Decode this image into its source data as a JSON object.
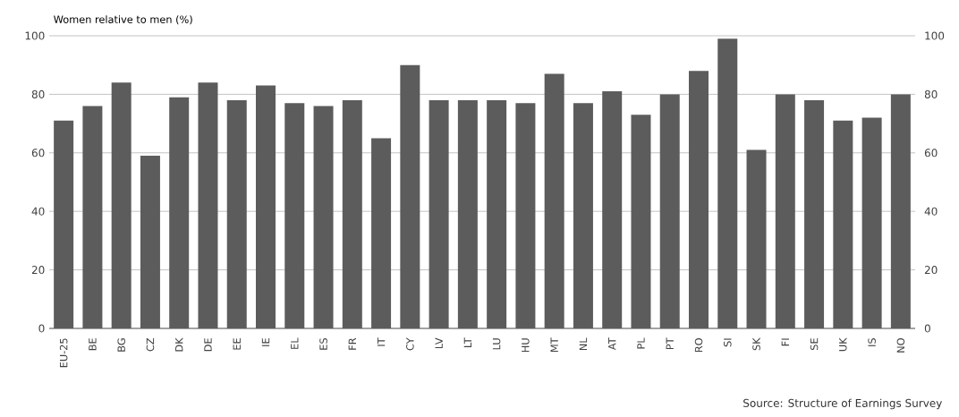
{
  "chart_data": {
    "type": "bar",
    "ylabel": "Women relative to men (%)",
    "categories": [
      "EU-25",
      "BE",
      "BG",
      "CZ",
      "DK",
      "DE",
      "EE",
      "IE",
      "EL",
      "ES",
      "FR",
      "IT",
      "CY",
      "LV",
      "LT",
      "LU",
      "HU",
      "MT",
      "NL",
      "AT",
      "PL",
      "PT",
      "RO",
      "SI",
      "SK",
      "FI",
      "SE",
      "UK",
      "IS",
      "NO"
    ],
    "values": [
      71,
      76,
      84,
      59,
      79,
      84,
      78,
      83,
      77,
      76,
      78,
      65,
      90,
      78,
      78,
      78,
      77,
      87,
      77,
      81,
      73,
      80,
      88,
      99,
      61,
      80,
      78,
      71,
      72,
      80
    ],
    "color": "#5c5c5c",
    "ylim": [
      0,
      100
    ],
    "yticks": [
      0,
      20,
      40,
      60,
      80,
      100
    ],
    "y2lim": [
      0,
      100
    ],
    "y2ticks": [
      0,
      20,
      40,
      60,
      80,
      100
    ],
    "grid": "y",
    "annotations": [
      "Source: Structure of Earnings Survey"
    ]
  }
}
